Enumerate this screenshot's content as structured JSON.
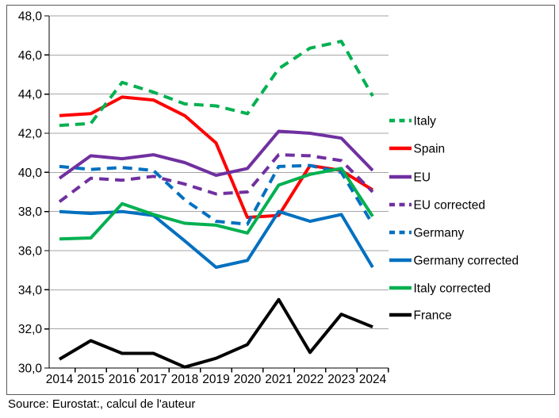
{
  "figure": {
    "source_note": "Source: Eurostat:, calcul de l'auteur"
  },
  "chart_data": {
    "type": "line",
    "title": "",
    "xlabel": "",
    "ylabel": "",
    "categories": [
      "2014",
      "2015",
      "2016",
      "2017",
      "2018",
      "2019",
      "2020",
      "2021",
      "2022",
      "2023",
      "2024"
    ],
    "y_axis": {
      "min": 30,
      "max": 48,
      "step": 2,
      "tick_labels": [
        "30,0",
        "32,0",
        "34,0",
        "36,0",
        "38,0",
        "40,0",
        "42,0",
        "44,0",
        "46,0",
        "48,0"
      ]
    },
    "grid": true,
    "legend_position": "right",
    "colors": {
      "green": "#00B050",
      "red": "#FF0000",
      "purple": "#7030A0",
      "blue": "#0070C0",
      "black": "#000000",
      "gridline": "#A6A6A6",
      "frame": "#595959"
    },
    "series": [
      {
        "name": "Italy",
        "color": "#00B050",
        "dash": true,
        "values": [
          42.4,
          42.5,
          44.6,
          44.1,
          43.5,
          43.4,
          43.0,
          45.3,
          46.35,
          46.7,
          43.9
        ]
      },
      {
        "name": "Spain",
        "color": "#FF0000",
        "dash": false,
        "values": [
          42.9,
          43.0,
          43.85,
          43.7,
          42.9,
          41.5,
          37.7,
          37.8,
          40.35,
          40.1,
          39.1
        ]
      },
      {
        "name": "EU",
        "color": "#7030A0",
        "dash": false,
        "values": [
          39.7,
          40.85,
          40.7,
          40.9,
          40.5,
          39.85,
          40.2,
          42.1,
          42.0,
          41.75,
          40.1
        ]
      },
      {
        "name": "EU corrected",
        "color": "#7030A0",
        "dash": true,
        "values": [
          38.5,
          39.7,
          39.6,
          39.8,
          39.4,
          38.9,
          39.0,
          40.9,
          40.85,
          40.6,
          39.0
        ]
      },
      {
        "name": "Germany",
        "color": "#0070C0",
        "dash": true,
        "values": [
          40.3,
          40.15,
          40.25,
          40.1,
          38.6,
          37.5,
          37.35,
          40.3,
          40.35,
          40.0,
          37.35
        ]
      },
      {
        "name": "Germany corrected",
        "color": "#0070C0",
        "dash": false,
        "values": [
          38.0,
          37.9,
          38.0,
          37.8,
          36.5,
          35.15,
          35.5,
          38.0,
          37.5,
          37.85,
          35.15
        ]
      },
      {
        "name": "Italy corrected",
        "color": "#00B050",
        "dash": false,
        "values": [
          36.6,
          36.65,
          38.4,
          37.85,
          37.4,
          37.3,
          36.9,
          39.35,
          39.9,
          40.2,
          37.75
        ]
      },
      {
        "name": "France",
        "color": "#000000",
        "dash": false,
        "values": [
          30.45,
          31.4,
          30.75,
          30.75,
          30.05,
          30.5,
          31.2,
          33.5,
          30.8,
          32.75,
          32.1
        ]
      }
    ]
  }
}
